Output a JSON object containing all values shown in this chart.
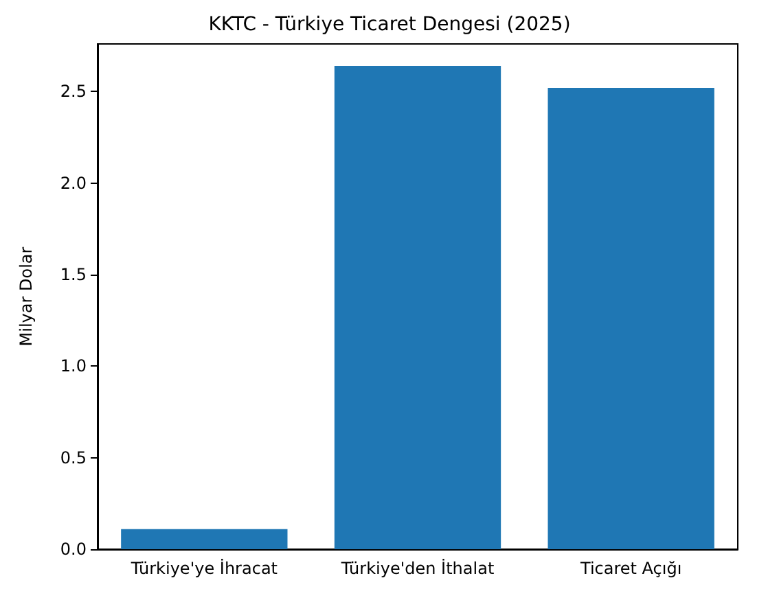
{
  "chart_data": {
    "type": "bar",
    "title": "KKTC - Türkiye Ticaret Dengesi (2025)",
    "ylabel": "Milyar Dolar",
    "categories": [
      "Türkiye'ye İhracat",
      "Türkiye'den İthalat",
      "Ticaret Açığı"
    ],
    "values": [
      0.11,
      2.64,
      2.52
    ],
    "color": "#1f77b4",
    "ylim": [
      0,
      2.76
    ],
    "yticks": [
      {
        "value": 0,
        "label": "0.0"
      },
      0.5,
      {
        "value": 1,
        "label": "1.0"
      },
      1.5,
      {
        "value": 2,
        "label": "2.0"
      },
      2.5
    ],
    "grid": false
  }
}
